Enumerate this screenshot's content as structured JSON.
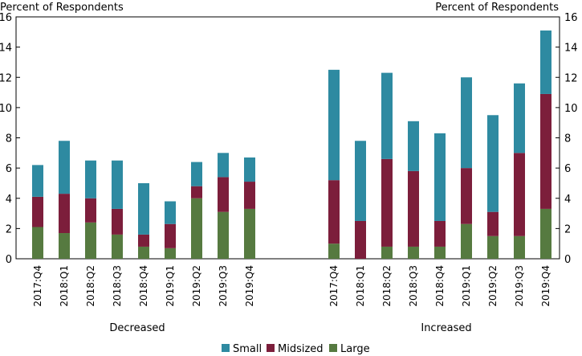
{
  "chart_data": {
    "type": "bar",
    "stacked": true,
    "ylabel_left": "Percent of Respondents",
    "ylabel_right": "Percent of Respondents",
    "ylim": [
      0,
      16
    ],
    "yticks": [
      0,
      2,
      4,
      6,
      8,
      10,
      12,
      14,
      16
    ],
    "grid": false,
    "legend_position": "bottom",
    "groups": [
      {
        "label": "Decreased",
        "categories": [
          "2017:Q4",
          "2018:Q1",
          "2018:Q2",
          "2018:Q3",
          "2018:Q4",
          "2019:Q1",
          "2019:Q2",
          "2019:Q3",
          "2019:Q4"
        ],
        "series": [
          {
            "name": "Large",
            "values": [
              2.1,
              1.7,
              2.4,
              1.6,
              0.8,
              0.7,
              4.0,
              3.1,
              3.3
            ]
          },
          {
            "name": "Midsized",
            "values": [
              2.0,
              2.6,
              1.6,
              1.7,
              0.8,
              1.6,
              0.8,
              2.3,
              1.8
            ]
          },
          {
            "name": "Small",
            "values": [
              2.1,
              3.5,
              2.5,
              3.2,
              3.4,
              1.5,
              1.6,
              1.6,
              1.6
            ]
          }
        ]
      },
      {
        "label": "Increased",
        "categories": [
          "2017:Q4",
          "2018:Q1",
          "2018:Q2",
          "2018:Q3",
          "2018:Q4",
          "2019:Q1",
          "2019:Q2",
          "2019:Q3",
          "2019:Q4"
        ],
        "series": [
          {
            "name": "Large",
            "values": [
              1.0,
              0.0,
              0.8,
              0.8,
              0.8,
              2.3,
              1.5,
              1.5,
              3.3
            ]
          },
          {
            "name": "Midsized",
            "values": [
              4.2,
              2.5,
              5.8,
              5.0,
              1.7,
              3.7,
              1.6,
              5.5,
              7.6
            ]
          },
          {
            "name": "Small",
            "values": [
              7.3,
              5.3,
              5.7,
              3.3,
              5.8,
              6.0,
              6.4,
              4.6,
              4.2
            ]
          }
        ]
      }
    ],
    "legend": [
      "Small",
      "Midsized",
      "Large"
    ],
    "colors": {
      "Small": "#2e8aa1",
      "Midsized": "#7c1e3b",
      "Large": "#567a40"
    }
  }
}
